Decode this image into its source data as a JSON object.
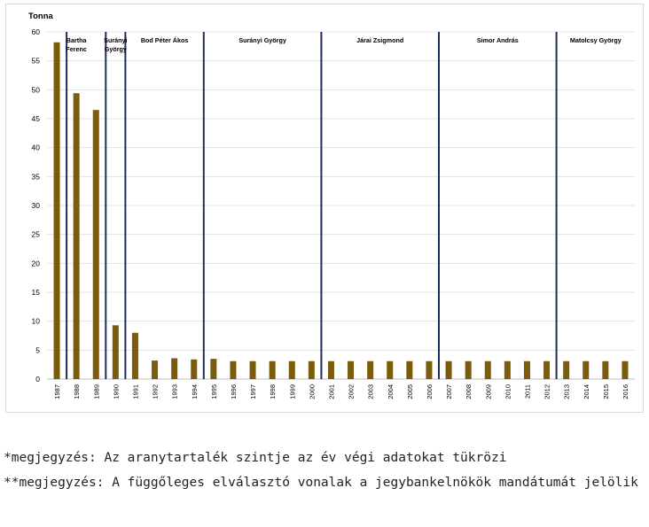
{
  "chart_data": {
    "type": "bar",
    "ylabel": "Tonna",
    "ylim": [
      0,
      60
    ],
    "yticks": [
      0,
      5,
      10,
      15,
      20,
      25,
      30,
      35,
      40,
      45,
      50,
      55,
      60
    ],
    "grid": true,
    "bar_color": "#7a5c0a",
    "divider_color": "#1f2d5a",
    "categories": [
      "1987",
      "1988",
      "1989",
      "1990",
      "1991",
      "1992",
      "1993",
      "1994",
      "1995",
      "1996",
      "1997",
      "1998",
      "1999",
      "2000",
      "2001",
      "2002",
      "2003",
      "2004",
      "2005",
      "2006",
      "2007",
      "2008",
      "2009",
      "2010",
      "2011",
      "2012",
      "2013",
      "2014",
      "2015",
      "2016"
    ],
    "values": [
      58.2,
      49.4,
      46.5,
      9.3,
      8.0,
      3.2,
      3.6,
      3.4,
      3.5,
      3.1,
      3.1,
      3.1,
      3.1,
      3.1,
      3.1,
      3.1,
      3.1,
      3.1,
      3.1,
      3.1,
      3.1,
      3.1,
      3.1,
      3.1,
      3.1,
      3.1,
      3.1,
      3.1,
      3.1,
      3.1
    ],
    "governors": [
      {
        "name": [
          "Bartha",
          "Ferenc"
        ],
        "from": "1987",
        "to": "1989"
      },
      {
        "name": [
          "Surányi",
          "György"
        ],
        "from": "1989",
        "to": "1990"
      },
      {
        "name": [
          "Bod Péter Ákos"
        ],
        "from": "1990",
        "to": "1994"
      },
      {
        "name": [
          "Surányi György"
        ],
        "from": "1994",
        "to": "2000"
      },
      {
        "name": [
          "Járai Zsigmond"
        ],
        "from": "2000",
        "to": "2006"
      },
      {
        "name": [
          "Simor András"
        ],
        "from": "2006",
        "to": "2012"
      },
      {
        "name": [
          "Matolcsy György"
        ],
        "from": "2012",
        "to": "2016"
      }
    ],
    "dividers_after": [
      "1987",
      "1989",
      "1990",
      "1994",
      "2000",
      "2006",
      "2012"
    ]
  },
  "notes": {
    "note1": "*megjegyzés: Az aranytartalék szintje az év végi adatokat tükrözi",
    "note2": "**megjegyzés: A függőleges elválasztó vonalak a jegybankelnökök mandátumát jelölik"
  }
}
